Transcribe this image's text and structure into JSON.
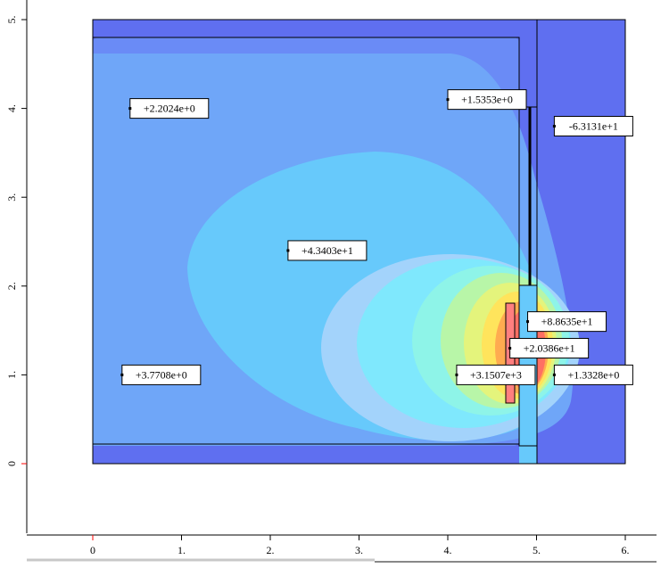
{
  "chart_data": {
    "type": "contour",
    "x_ticks": [
      "0",
      "1.",
      "2.",
      "3.",
      "4.",
      "5.",
      "6."
    ],
    "y_ticks": [
      "0",
      "1.",
      "2.",
      "3.",
      "4.",
      "5."
    ],
    "origin_tick_color": "#ff0000",
    "xlim": [
      0,
      6
    ],
    "ylim": [
      0,
      5
    ],
    "annotations": [
      {
        "text": "+2.2024e+0",
        "x": 0.42,
        "y": 4.0
      },
      {
        "text": "+1.5353e+0",
        "x": 4.0,
        "y": 4.1
      },
      {
        "text": "-6.3131e+1",
        "x": 5.2,
        "y": 3.8
      },
      {
        "text": "+4.3403e+1",
        "x": 2.2,
        "y": 2.4
      },
      {
        "text": "+8.8635e+1",
        "x": 4.9,
        "y": 1.6
      },
      {
        "text": "+2.0386e+1",
        "x": 4.7,
        "y": 1.3
      },
      {
        "text": "+3.1507e+3",
        "x": 4.1,
        "y": 1.0
      },
      {
        "text": "+1.3328e+0",
        "x": 5.2,
        "y": 1.0
      },
      {
        "text": "+3.7708e+0",
        "x": 0.33,
        "y": 1.0
      }
    ]
  },
  "colors": {
    "background": "#ffffff",
    "outer_region": "#5f6ff0",
    "level_1": "#6a8bf6",
    "level_2": "#6fa6f8",
    "level_3": "#67c9fb",
    "level_4": "#a3d3fb",
    "level_5": "#7fe8fd",
    "level_6": "#8ef4e8",
    "level_7": "#b8f6a8",
    "level_8": "#e4f47c",
    "level_9": "#ffe45c",
    "level_10": "#ffab50",
    "level_11": "#ff6f63",
    "conductor": "#ff7f7f",
    "outline": "#000000"
  }
}
